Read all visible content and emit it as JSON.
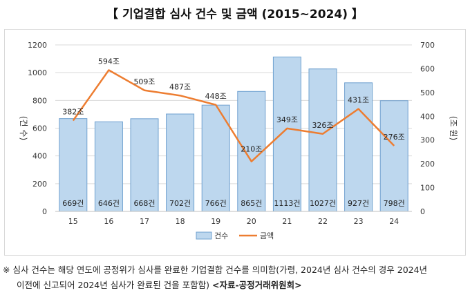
{
  "title": "【 기업결합 심사 건수 및 금액 (2015~2024) 】",
  "chart_data": {
    "type": "bar",
    "categories": [
      "15",
      "16",
      "17",
      "18",
      "19",
      "20",
      "21",
      "22",
      "23",
      "24"
    ],
    "series": [
      {
        "name": "건수",
        "type": "bar",
        "axis": "left",
        "values": [
          669,
          646,
          668,
          702,
          766,
          865,
          1113,
          1027,
          927,
          798
        ],
        "labels": [
          "669건",
          "646건",
          "668건",
          "702건",
          "766건",
          "865건",
          "1113건",
          "1027건",
          "927건",
          "798건"
        ],
        "color": "#bdd7ee"
      },
      {
        "name": "금액",
        "type": "line",
        "axis": "right",
        "values": [
          382,
          594,
          509,
          487,
          448,
          210,
          349,
          326,
          431,
          276
        ],
        "labels": [
          "382조",
          "594조",
          "509조",
          "487조",
          "448조",
          "210조",
          "349조",
          "326조",
          "431조",
          "276조"
        ],
        "color": "#ed7d31"
      }
    ],
    "ylabel_left": "(건 수)",
    "ylabel_right": "(조 원)",
    "ylim_left": [
      0,
      1200
    ],
    "ylim_right": [
      0,
      700
    ],
    "yticks_left": [
      "0",
      "200",
      "400",
      "600",
      "800",
      "1000",
      "1200"
    ],
    "yticks_right": [
      "0",
      "100",
      "200",
      "300",
      "400",
      "500",
      "600",
      "700"
    ],
    "legend": [
      "건수",
      "금액"
    ]
  },
  "notes": {
    "line1": "※ 심사 건수는 해당 연도에 공정위가 심사를 완료한 기업결합 건수를 의미함(가령, 2024년 심사 건수의 경우 2024년",
    "line2": "이전에 신고되어 2024년 심사가 완료된 건을 포함함)",
    "source": "<자료-공정거래위원회>"
  }
}
